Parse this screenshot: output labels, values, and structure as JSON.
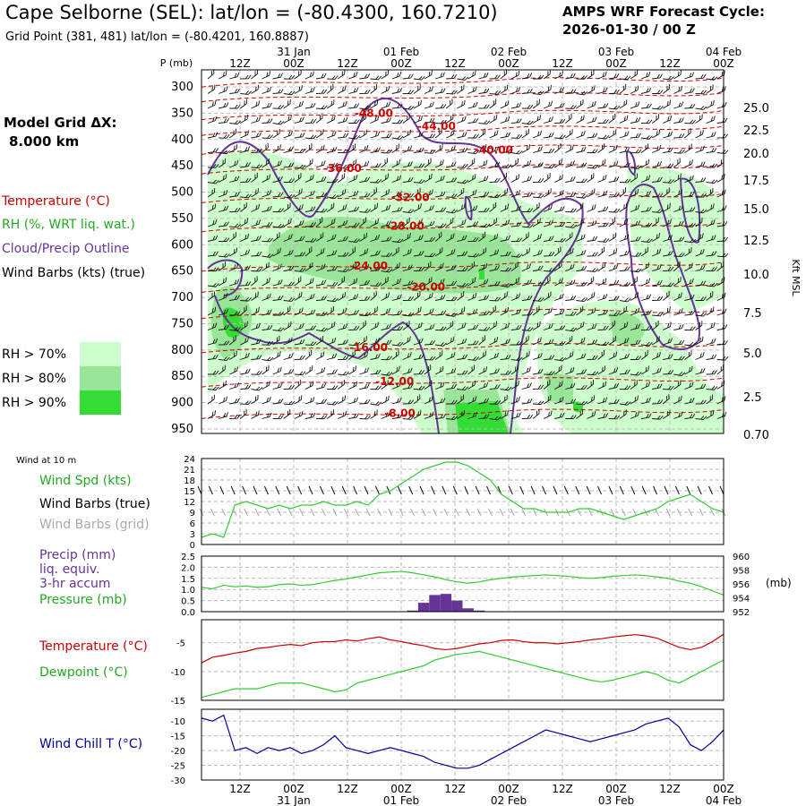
{
  "header": {
    "title": "Cape Selborne (SEL):  lat/lon = (-80.4300, 160.7210)",
    "subtitle": "Grid Point (381, 481) lat/lon = (-80.4201, 160.8887)",
    "cycle_line1": "AMPS WRF Forecast Cycle:",
    "cycle_line2": "2026-01-30 / 00  Z"
  },
  "model_grid": {
    "label": "Model Grid ΔX:",
    "value": "8.000 km"
  },
  "legend": {
    "temperature": "Temperature (°C)",
    "rh": "RH (%, WRT liq. wat.)",
    "cloud": "Cloud/Precip Outline",
    "wind_barbs": "Wind Barbs (kts) (true)",
    "rh70": "RH > 70%",
    "rh80": "RH > 80%",
    "rh90": "RH > 90%",
    "rh70_color": "#ccffcc",
    "rh80_color": "#99e699",
    "rh90_color": "#33dd33"
  },
  "colors": {
    "temperature": "#cc0000",
    "rh": "#33cc33",
    "cloud": "#663399",
    "precip": "#663399",
    "windchill": "#000099",
    "wind_grid": "#aaaaaa"
  },
  "time_axis": {
    "hour_ticks": [
      "12Z",
      "00Z",
      "12Z",
      "00Z",
      "12Z",
      "00Z",
      "12Z",
      "00Z",
      "12Z",
      "00Z"
    ],
    "dates_top": [
      "31 Jan",
      "01 Feb",
      "02 Feb",
      "03 Feb",
      "04 Feb"
    ],
    "dates_bottom": [
      "31 Jan",
      "01 Feb",
      "02 Feb",
      "03 Feb",
      "04 Feb"
    ],
    "p_unit": "P (mb)",
    "right_unit": "Kft MSL"
  },
  "chart_data": [
    {
      "type": "cross-section",
      "pressure_levels": [
        "300",
        "350",
        "400",
        "450",
        "500",
        "550",
        "600",
        "650",
        "700",
        "750",
        "800",
        "850",
        "900",
        "950"
      ],
      "height_levels": [
        "25.0",
        "22.5",
        "20.0",
        "17.5",
        "15.0",
        "12.5",
        "10.0",
        "7.5",
        "5.0",
        "2.5",
        "0.70"
      ],
      "temperature_labels": [
        {
          "text": "-48.00",
          "t": 0.33,
          "p": 350
        },
        {
          "text": "-44.00",
          "t": 0.45,
          "p": 375
        },
        {
          "text": "-40.00",
          "t": 0.56,
          "p": 420
        },
        {
          "text": "-36.00",
          "t": 0.27,
          "p": 455
        },
        {
          "text": "-32.00",
          "t": 0.4,
          "p": 510
        },
        {
          "text": "-28.00",
          "t": 0.39,
          "p": 565
        },
        {
          "text": "-24.00",
          "t": 0.32,
          "p": 640
        },
        {
          "text": "-20.00",
          "t": 0.43,
          "p": 680
        },
        {
          "text": "-16.00",
          "t": 0.32,
          "p": 795
        },
        {
          "text": "-12.00",
          "t": 0.37,
          "p": 860
        },
        {
          "text": "-8.00",
          "t": 0.38,
          "p": 920
        }
      ]
    },
    {
      "type": "line",
      "title": "Wind at 10 m",
      "series_label": "Wind Spd (kts)",
      "barbs_true_label": "Wind Barbs (true)",
      "barbs_grid_label": "Wind Barbs (grid)",
      "y_ticks": [
        "0",
        "3",
        "6",
        "9",
        "12",
        "15",
        "18",
        "21",
        "24"
      ],
      "ylim": [
        0,
        24
      ],
      "values": [
        2,
        3,
        2,
        11,
        12,
        11,
        10,
        11,
        10,
        11,
        11,
        12,
        11,
        11,
        12,
        11,
        14,
        15,
        17,
        19,
        21,
        22,
        23,
        23,
        22,
        20,
        18,
        14,
        12,
        10,
        10,
        9,
        9,
        9,
        10,
        10,
        9,
        8,
        7,
        8,
        9,
        10,
        12,
        13,
        14,
        12,
        10,
        9
      ]
    },
    {
      "type": "bar+line",
      "precip_label": "Precip (mm)",
      "precip_label2": "liq. equiv.",
      "precip_label3": "3-hr accum",
      "pressure_label": "Pressure (mb)",
      "right_unit": "(mb)",
      "left_ticks": [
        "0.0",
        "0.5",
        "1.0",
        "1.5",
        "2.0",
        "2.5"
      ],
      "right_ticks": [
        "952",
        "954",
        "956",
        "958",
        "960"
      ],
      "precip_ylim": [
        0,
        2.5
      ],
      "pressure_ylim": [
        952,
        960
      ],
      "precip": [
        0,
        0,
        0,
        0,
        0,
        0,
        0,
        0,
        0,
        0,
        0,
        0,
        0,
        0,
        0,
        0,
        0,
        0,
        0,
        0.05,
        0.4,
        0.75,
        0.8,
        0.5,
        0.15,
        0.05,
        0,
        0,
        0,
        0,
        0,
        0,
        0,
        0,
        0,
        0,
        0,
        0,
        0,
        0,
        0,
        0,
        0,
        0,
        0,
        0,
        0,
        0
      ],
      "pressure": [
        955.5,
        955.3,
        955.8,
        955.6,
        955.7,
        955.5,
        955.6,
        955.9,
        956.0,
        955.8,
        955.9,
        956.2,
        956.5,
        956.7,
        957.0,
        957.3,
        957.6,
        957.7,
        957.8,
        957.6,
        957.3,
        957.0,
        956.6,
        956.3,
        956.1,
        956.3,
        956.6,
        956.8,
        957.0,
        957.1,
        957.2,
        957.3,
        957.2,
        957.1,
        956.9,
        956.8,
        956.9,
        957.1,
        957.2,
        957.3,
        957.2,
        957.0,
        956.8,
        956.4,
        956.1,
        955.6,
        955.0,
        954.4
      ]
    },
    {
      "type": "line",
      "temp_label": "Temperature (°C)",
      "dew_label": "Dewpoint (°C)",
      "y_ticks": [
        "-15",
        "-10",
        "-5"
      ],
      "ylim": [
        -15,
        -1
      ],
      "temperature": [
        -8.5,
        -7.5,
        -7.2,
        -6.8,
        -6.5,
        -6.0,
        -5.8,
        -5.5,
        -5.3,
        -5.5,
        -5.0,
        -4.8,
        -4.8,
        -4.5,
        -4.7,
        -4.3,
        -4.0,
        -4.5,
        -4.8,
        -5.2,
        -5.5,
        -6.0,
        -6.2,
        -6.0,
        -5.6,
        -5.2,
        -5.0,
        -4.6,
        -4.5,
        -4.8,
        -5.0,
        -5.0,
        -5.2,
        -5.0,
        -4.8,
        -4.5,
        -4.3,
        -4.0,
        -3.8,
        -3.6,
        -3.8,
        -4.2,
        -5.0,
        -5.8,
        -6.2,
        -5.8,
        -4.8,
        -3.5
      ],
      "dewpoint": [
        -14.5,
        -14.0,
        -13.5,
        -13.0,
        -13.0,
        -13.0,
        -12.5,
        -12.0,
        -12.0,
        -12.0,
        -12.5,
        -13.0,
        -13.5,
        -13.2,
        -12.0,
        -11.5,
        -11.0,
        -10.5,
        -10.0,
        -9.5,
        -9.0,
        -8.0,
        -7.5,
        -7.0,
        -6.8,
        -6.5,
        -7.0,
        -7.5,
        -8.0,
        -8.5,
        -9.0,
        -9.5,
        -10.0,
        -10.5,
        -11.0,
        -11.5,
        -11.8,
        -11.5,
        -11.0,
        -10.5,
        -10.0,
        -10.5,
        -11.5,
        -12.0,
        -11.0,
        -10.0,
        -9.0,
        -8.0
      ]
    },
    {
      "type": "line",
      "series_label": "Wind Chill T (°C)",
      "y_ticks": [
        "-30",
        "-25",
        "-20",
        "-15",
        "-10"
      ],
      "ylim": [
        -30,
        -6
      ],
      "values": [
        -9,
        -10,
        -8,
        -20,
        -19,
        -21,
        -19,
        -20,
        -19,
        -21,
        -20,
        -18,
        -15,
        -19,
        -20,
        -21,
        -20,
        -19,
        -20,
        -21,
        -22,
        -24,
        -25,
        -26,
        -26,
        -25,
        -23,
        -21,
        -19,
        -17,
        -15,
        -13,
        -14,
        -15,
        -16,
        -17,
        -16,
        -15,
        -14,
        -13,
        -11,
        -10,
        -9,
        -12,
        -18,
        -20,
        -17,
        -13
      ]
    }
  ]
}
